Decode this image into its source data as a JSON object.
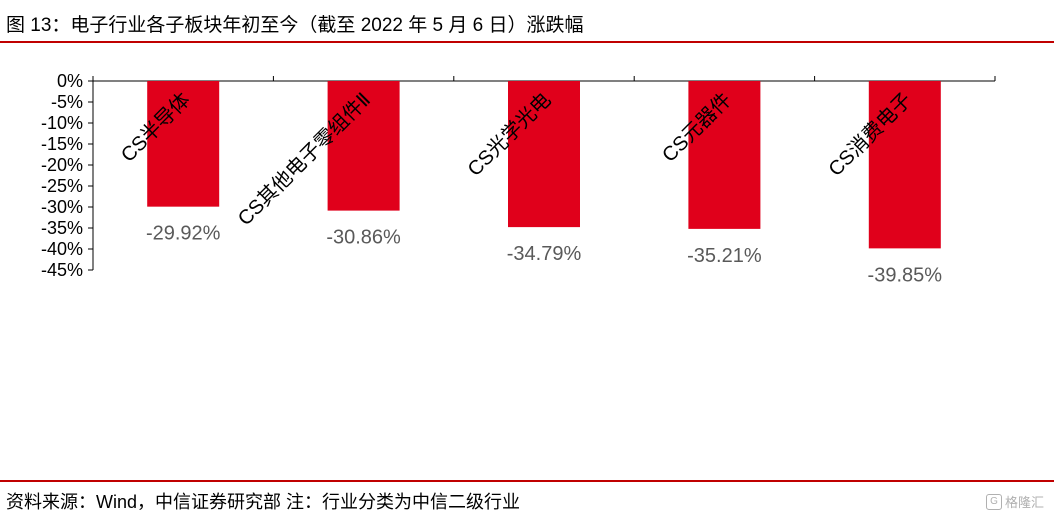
{
  "title": "图 13：电子行业各子板块年初至今（截至 2022 年 5 月 6 日）涨跌幅",
  "source": "资料来源：Wind，中信证券研究部  注：行业分类为中信二级行业",
  "watermark": "格隆汇",
  "colors": {
    "accent": "#c00000",
    "bar": "#e0001b"
  },
  "chart_data": {
    "type": "bar",
    "categories": [
      "CS半导体",
      "CS其他电子零组件Ⅱ",
      "CS光学光电",
      "CS元器件",
      "CS消费电子"
    ],
    "values": [
      -29.92,
      -30.86,
      -34.79,
      -35.21,
      -39.85
    ],
    "data_labels": [
      "-29.92%",
      "-30.86%",
      "-34.79%",
      "-35.21%",
      "-39.85%"
    ],
    "y_ticks": [
      0,
      -5,
      -10,
      -15,
      -20,
      -25,
      -30,
      -35,
      -40,
      -45
    ],
    "y_tick_labels": [
      "0%",
      "-5%",
      "-10%",
      "-15%",
      "-20%",
      "-25%",
      "-30%",
      "-35%",
      "-40%",
      "-45%"
    ],
    "ylim": [
      -45,
      0
    ],
    "grid": false,
    "legend": "none"
  }
}
